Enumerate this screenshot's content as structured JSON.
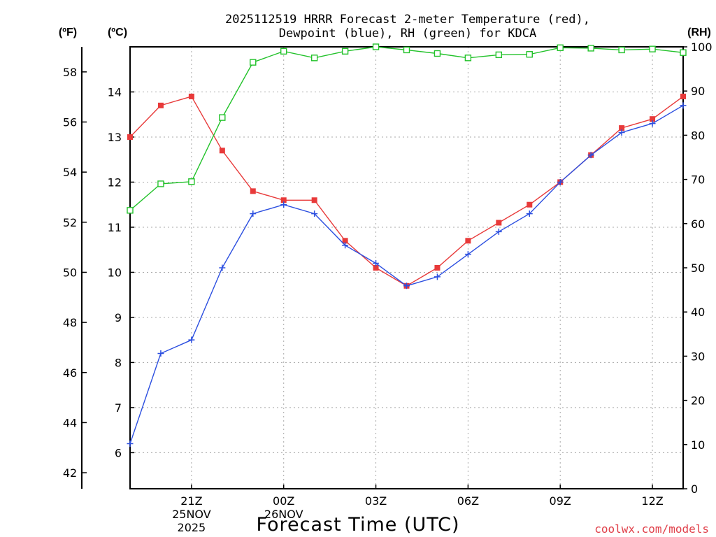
{
  "chart_data": {
    "type": "line",
    "title_line1": "2025112519 HRRR Forecast 2-meter Temperature (red),",
    "title_line2": "Dewpoint (blue), RH (green) for KDCA",
    "xlabel": "Forecast Time (UTC)",
    "credit": "coolwx.com/models",
    "units": {
      "fahrenheit": "(ºF)",
      "celsius": "(ºC)",
      "rh": "(RH)"
    },
    "x_range": [
      19,
      37
    ],
    "x_ticks": [
      {
        "x": 21,
        "lines": [
          "21Z",
          "25NOV",
          "2025"
        ]
      },
      {
        "x": 24,
        "lines": [
          "00Z",
          "26NOV"
        ]
      },
      {
        "x": 27,
        "lines": [
          "03Z"
        ]
      },
      {
        "x": 30,
        "lines": [
          "06Z"
        ]
      },
      {
        "x": 33,
        "lines": [
          "09Z"
        ]
      },
      {
        "x": 36,
        "lines": [
          "12Z"
        ]
      }
    ],
    "celsius_axis": {
      "range": [
        5.2,
        15.0
      ],
      "ticks": [
        6,
        7,
        8,
        9,
        10,
        11,
        12,
        13,
        14
      ]
    },
    "fahrenheit_axis": {
      "ticks": [
        42,
        44,
        46,
        48,
        50,
        52,
        54,
        56,
        58
      ]
    },
    "rh_axis": {
      "range": [
        0,
        100
      ],
      "ticks": [
        0,
        10,
        20,
        30,
        40,
        50,
        60,
        70,
        80,
        90,
        100
      ]
    },
    "series": [
      {
        "name": "Temperature",
        "axis": "celsius",
        "color": "#e83a3a",
        "marker": "filled-square",
        "x": [
          19,
          20,
          21,
          22,
          23,
          24,
          25,
          26,
          27,
          28,
          29,
          30,
          31,
          32,
          33,
          34,
          35,
          36,
          37
        ],
        "values": [
          13.0,
          13.7,
          13.9,
          12.7,
          11.8,
          11.6,
          11.6,
          10.7,
          10.1,
          9.7,
          10.1,
          10.7,
          11.1,
          11.5,
          12.0,
          12.6,
          13.2,
          13.4,
          13.9
        ]
      },
      {
        "name": "Dewpoint",
        "axis": "celsius",
        "color": "#2c4fe0",
        "marker": "plus",
        "x": [
          19,
          20,
          21,
          22,
          23,
          24,
          25,
          26,
          27,
          28,
          29,
          30,
          31,
          32,
          33,
          34,
          35,
          36,
          37
        ],
        "values": [
          6.2,
          8.2,
          8.5,
          10.1,
          11.3,
          11.5,
          11.3,
          10.6,
          10.2,
          9.7,
          9.9,
          10.4,
          10.9,
          11.3,
          12.0,
          12.6,
          13.1,
          13.3,
          13.7
        ]
      },
      {
        "name": "RH",
        "axis": "rh",
        "color": "#22c22a",
        "marker": "open-square",
        "x": [
          19,
          20,
          21,
          22,
          23,
          24,
          25,
          26,
          27,
          28,
          29,
          30,
          31,
          32,
          33,
          34,
          35,
          36,
          37
        ],
        "values": [
          63,
          69,
          69.5,
          84,
          96.5,
          99,
          97.5,
          99,
          100,
          99.3,
          98.5,
          97.5,
          98.2,
          98.3,
          99.8,
          99.7,
          99.3,
          99.5,
          98.7
        ]
      }
    ]
  }
}
